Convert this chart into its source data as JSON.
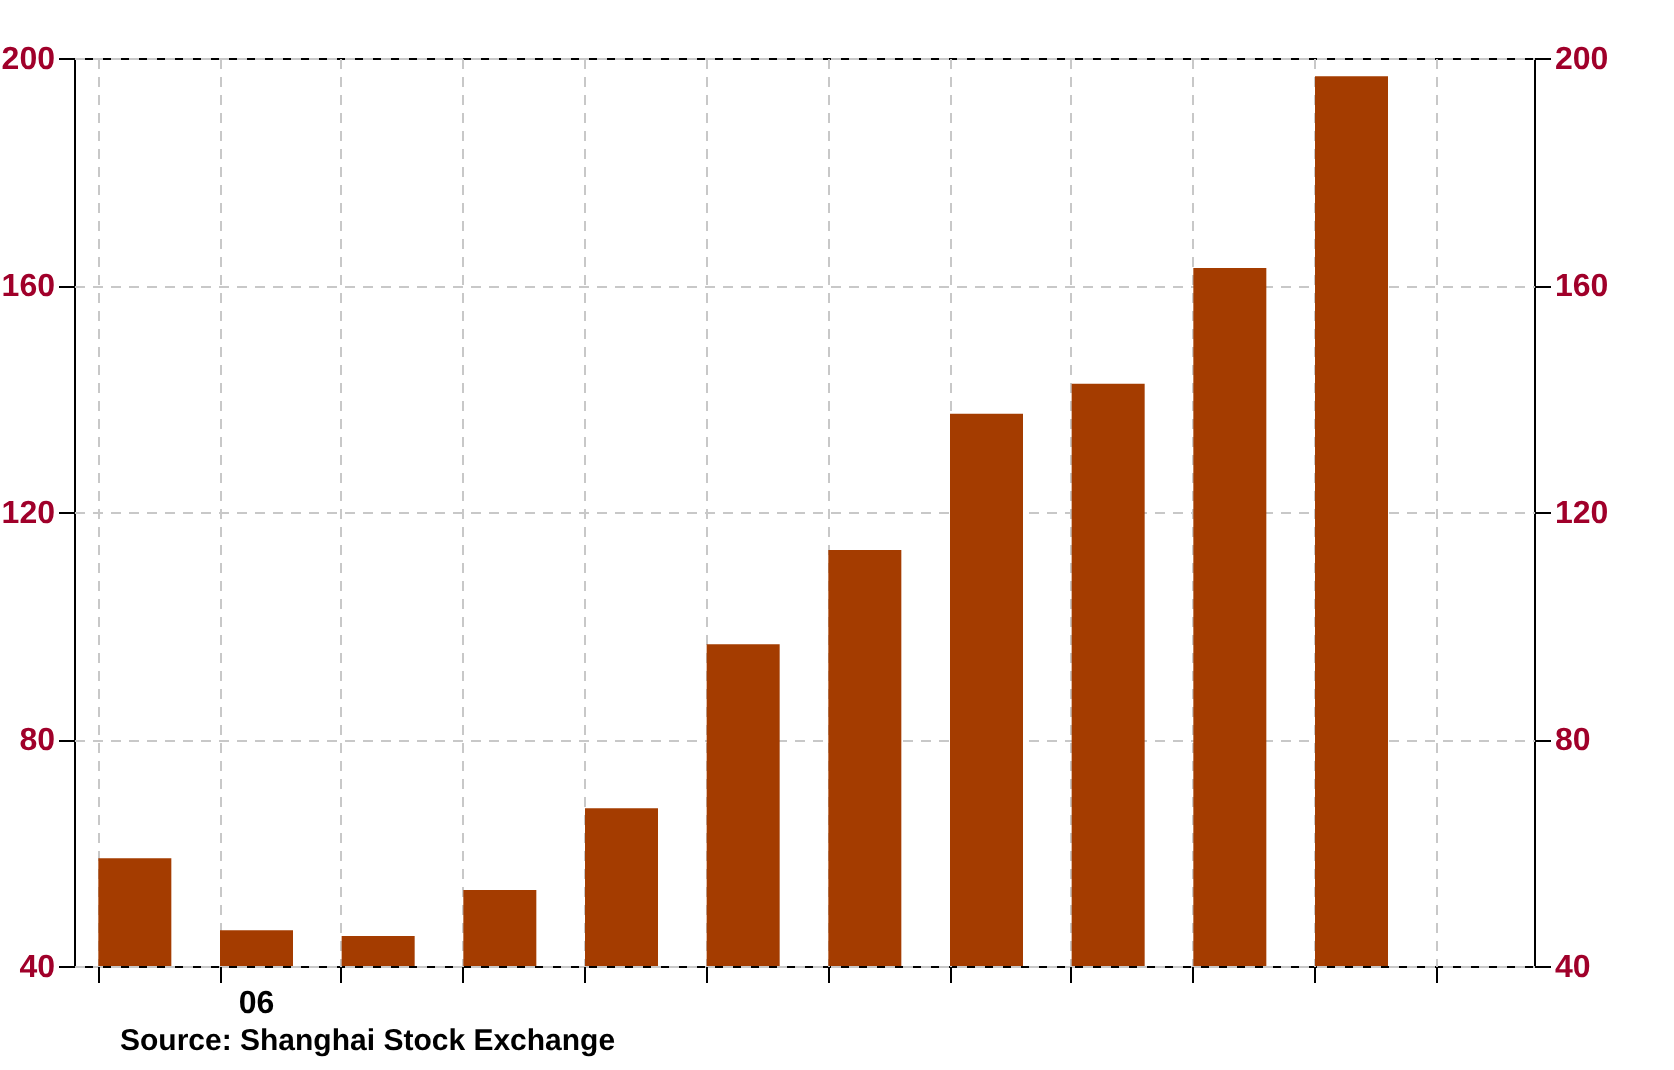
{
  "chart_data": {
    "type": "bar",
    "categories": [
      null,
      "06",
      null,
      null,
      null,
      null,
      null,
      null,
      null,
      null,
      null,
      null
    ],
    "values": [
      59,
      46.3,
      45.3,
      53.4,
      67.8,
      96.7,
      113.3,
      137.3,
      142.6,
      163,
      196.8,
      null
    ],
    "color": "#a43c00",
    "ylim": [
      40,
      200
    ],
    "yticks": [
      40,
      80,
      120,
      160,
      200
    ],
    "y2lim": [
      40,
      200
    ],
    "y2ticks": [
      40,
      80,
      120,
      160,
      200
    ],
    "grid": true,
    "annotations": [
      "Source:  Shanghai Stock Exchange"
    ]
  }
}
